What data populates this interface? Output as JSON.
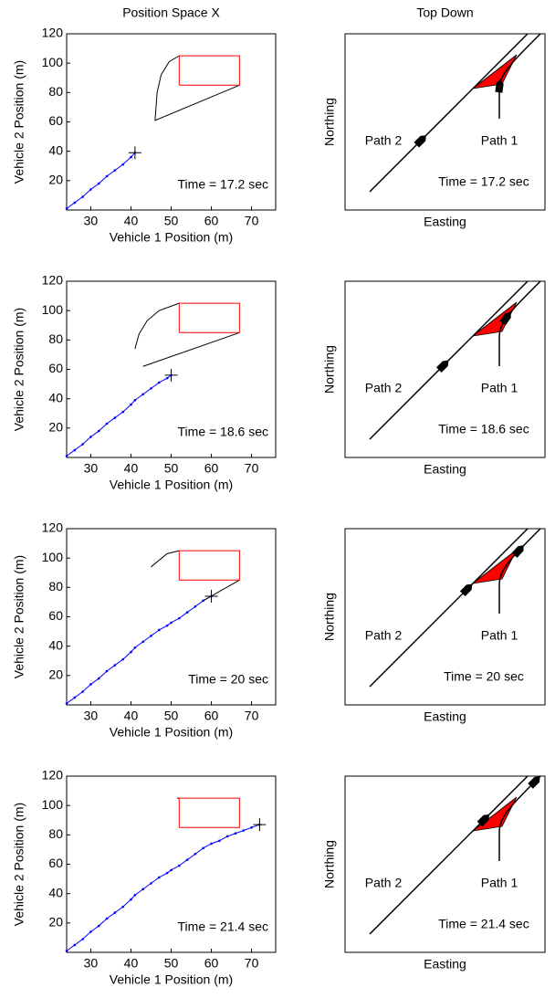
{
  "chart_data": [
    {
      "type": "line",
      "title": "Position Space X",
      "xlabel": "Vehicle 1 Position (m)",
      "ylabel": "Vehicle 2 Position (m)",
      "xlim": [
        24,
        76
      ],
      "ylim": [
        0,
        120
      ],
      "xticks": [
        30,
        40,
        50,
        60,
        70
      ],
      "yticks": [
        20,
        40,
        60,
        80,
        100,
        120
      ],
      "annotation": "Time = 17.2 sec",
      "series": [
        {
          "color": "#0000ff",
          "marker": "dot",
          "x": [
            24,
            26,
            28,
            30,
            32,
            34,
            36,
            38,
            40,
            41
          ],
          "values": [
            1,
            5,
            9,
            14,
            18,
            23,
            27,
            31,
            36,
            39
          ]
        },
        {
          "color": "#000000",
          "x": [
            52,
            49.5,
            47.5,
            46.5,
            46,
            67
          ],
          "values": [
            105,
            101,
            92,
            80,
            61,
            85
          ]
        },
        {
          "color": "#ff0000",
          "x": [
            52,
            67,
            67,
            52,
            52
          ],
          "values": [
            85,
            85,
            105,
            105,
            85
          ]
        },
        {
          "color": "#000000",
          "marker": "plus",
          "x": [
            41
          ],
          "values": [
            39
          ]
        }
      ]
    },
    {
      "type": "topdown",
      "title": "Top Down",
      "xlabel": "Easting",
      "ylabel": "Northing",
      "annotations": [
        "Path 2",
        "Path 1",
        "Time = 17.2 sec"
      ]
    },
    {
      "type": "line",
      "xlabel": "Vehicle 1 Position (m)",
      "ylabel": "Vehicle 2 Position (m)",
      "xlim": [
        24,
        76
      ],
      "ylim": [
        0,
        120
      ],
      "xticks": [
        30,
        40,
        50,
        60,
        70
      ],
      "yticks": [
        20,
        40,
        60,
        80,
        100,
        120
      ],
      "annotation": "Time = 18.6 sec",
      "series": [
        {
          "color": "#0000ff",
          "marker": "dot",
          "x": [
            24,
            26,
            28,
            30,
            32,
            34,
            36,
            38,
            40,
            41,
            43,
            45,
            47,
            49,
            50
          ],
          "values": [
            1,
            5,
            9,
            14,
            18,
            23,
            27,
            31,
            36,
            39,
            43,
            47,
            51,
            54,
            56
          ]
        },
        {
          "color": "#000000",
          "x": [
            52,
            47,
            44,
            42,
            41,
            null,
            43,
            67
          ],
          "values": [
            105,
            100,
            93,
            84,
            74,
            null,
            62,
            85
          ]
        },
        {
          "color": "#ff0000",
          "x": [
            52,
            67,
            67,
            52,
            52
          ],
          "values": [
            85,
            85,
            105,
            105,
            85
          ]
        },
        {
          "color": "#000000",
          "marker": "plus",
          "x": [
            50
          ],
          "values": [
            56
          ]
        }
      ]
    },
    {
      "type": "topdown",
      "xlabel": "Easting",
      "ylabel": "Northing",
      "annotations": [
        "Path 2",
        "Path 1",
        "Time = 18.6 sec"
      ]
    },
    {
      "type": "line",
      "xlabel": "Vehicle 1 Position (m)",
      "ylabel": "Vehicle 2 Position (m)",
      "xlim": [
        24,
        76
      ],
      "ylim": [
        0,
        120
      ],
      "xticks": [
        30,
        40,
        50,
        60,
        70
      ],
      "yticks": [
        20,
        40,
        60,
        80,
        100,
        120
      ],
      "annotation": "Time = 20 sec",
      "series": [
        {
          "color": "#0000ff",
          "marker": "dot",
          "x": [
            24,
            26,
            28,
            30,
            32,
            34,
            36,
            38,
            40,
            41,
            43,
            45,
            47,
            49,
            50,
            52,
            54,
            56,
            58,
            60
          ],
          "values": [
            1,
            5,
            9,
            14,
            18,
            23,
            27,
            31,
            36,
            39,
            43,
            47,
            51,
            54,
            56,
            59,
            63,
            67,
            71,
            74
          ]
        },
        {
          "color": "#000000",
          "x": [
            52,
            49,
            45,
            null,
            58,
            67
          ],
          "values": [
            105,
            103,
            94,
            null,
            71,
            85
          ]
        },
        {
          "color": "#ff0000",
          "x": [
            52,
            67,
            67,
            52,
            52
          ],
          "values": [
            85,
            85,
            105,
            105,
            85
          ]
        },
        {
          "color": "#000000",
          "marker": "plus",
          "x": [
            60
          ],
          "values": [
            74
          ]
        }
      ]
    },
    {
      "type": "topdown",
      "xlabel": "Easting",
      "ylabel": "Northing",
      "annotations": [
        "Path 2",
        "Path 1",
        "Time = 20 sec"
      ]
    },
    {
      "type": "line",
      "xlabel": "Vehicle 1 Position (m)",
      "ylabel": "Vehicle 2 Position (m)",
      "xlim": [
        24,
        76
      ],
      "ylim": [
        0,
        120
      ],
      "xticks": [
        30,
        40,
        50,
        60,
        70
      ],
      "yticks": [
        20,
        40,
        60,
        80,
        100,
        120
      ],
      "annotation": "Time = 21.4 sec",
      "series": [
        {
          "color": "#0000ff",
          "marker": "dot",
          "x": [
            24,
            26,
            28,
            30,
            32,
            34,
            36,
            38,
            40,
            41,
            43,
            45,
            47,
            49,
            50,
            52,
            54,
            56,
            58,
            60,
            62,
            64,
            66,
            68,
            70,
            72
          ],
          "values": [
            1,
            5,
            9,
            14,
            18,
            23,
            27,
            31,
            36,
            39,
            43,
            47,
            51,
            54,
            56,
            59,
            63,
            67,
            71,
            74,
            76,
            79,
            81,
            83,
            85,
            87
          ]
        },
        {
          "color": "#000000",
          "x": [
            51.5,
            52
          ],
          "values": [
            105,
            105
          ]
        },
        {
          "color": "#ff0000",
          "x": [
            52,
            67,
            67,
            52,
            52
          ],
          "values": [
            85,
            85,
            105,
            105,
            85
          ]
        },
        {
          "color": "#000000",
          "marker": "plus",
          "x": [
            72
          ],
          "values": [
            87
          ]
        }
      ]
    },
    {
      "type": "topdown",
      "xlabel": "Easting",
      "ylabel": "Northing",
      "annotations": [
        "Path 2",
        "Path 1",
        "Time = 21.4 sec"
      ]
    }
  ]
}
